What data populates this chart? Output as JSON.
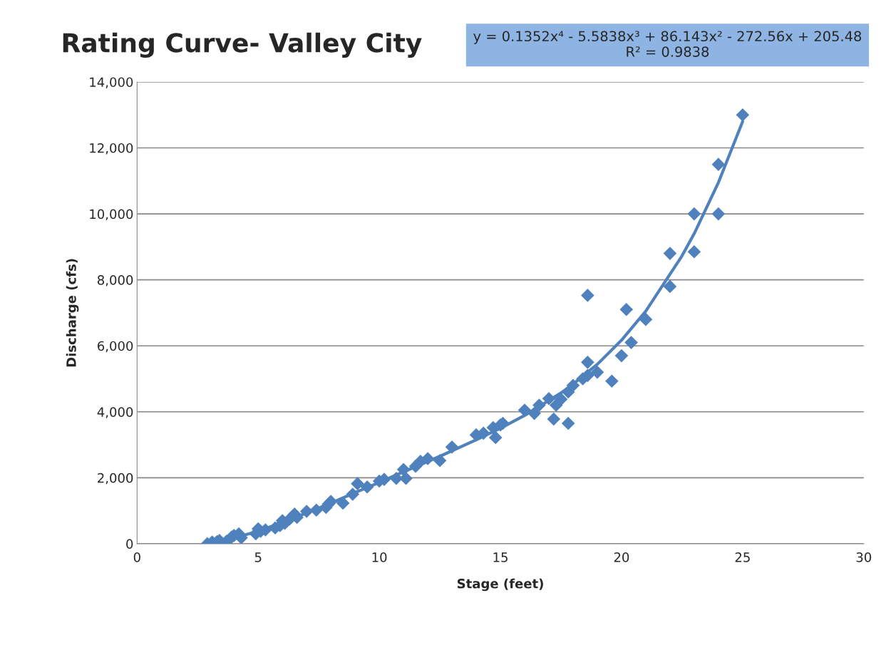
{
  "chart_data": {
    "type": "scatter",
    "title": "Rating Curve- Valley City",
    "xlabel": "Stage (feet)",
    "ylabel": "Discharge (cfs)",
    "annotations": [
      "y = 0.1352x⁴ - 5.5838x³ + 86.143x² - 272.56x + 205.48",
      "R² = 0.9838"
    ],
    "xlim": [
      0,
      30
    ],
    "xticks": [
      0,
      5,
      10,
      15,
      20,
      25,
      30
    ],
    "ylim": [
      0,
      14000
    ],
    "yticks": [
      0,
      {
        "value": 2000,
        "label": "2,000"
      },
      {
        "value": 4000,
        "label": "4,000"
      },
      {
        "value": 6000,
        "label": "6,000"
      },
      {
        "value": 8000,
        "label": "8,000"
      },
      {
        "value": 10000,
        "label": "10,000"
      },
      {
        "value": 12000,
        "label": "12,000"
      },
      {
        "value": 14000,
        "label": "14,000"
      }
    ],
    "grid": "y",
    "legend": false,
    "marker": "diamond",
    "series": [
      {
        "color": "#4f81bd",
        "x": [
          2.9,
          3.1,
          3.3,
          3.4,
          3.7,
          3.9,
          4.0,
          4.2,
          4.3,
          4.9,
          5.0,
          5.1,
          5.3,
          5.7,
          5.9,
          6.0,
          6.1,
          6.3,
          6.5,
          6.6,
          7.0,
          7.4,
          7.8,
          7.9,
          8.0,
          8.5,
          8.9,
          9.1,
          9.5,
          10.0,
          10.2,
          10.7,
          11.0,
          11.1,
          11.5,
          11.7,
          12.0,
          12.5,
          13.0,
          14.0,
          14.3,
          14.7,
          14.8,
          15.0,
          15.1,
          16.0,
          16.4,
          16.6,
          17.0,
          17.2,
          17.3,
          17.5,
          17.8,
          17.8,
          18.0,
          18.4,
          18.6,
          18.6,
          18.6,
          19.0,
          19.6,
          20.0,
          20.2,
          20.4,
          21.0,
          22.0,
          22.0,
          23.0,
          23.0,
          24.0,
          24.0,
          25.0
        ],
        "values": [
          0,
          50,
          60,
          100,
          80,
          200,
          250,
          300,
          180,
          300,
          450,
          380,
          420,
          480,
          550,
          700,
          620,
          750,
          900,
          800,
          980,
          1020,
          1100,
          1200,
          1280,
          1230,
          1500,
          1820,
          1720,
          1900,
          1950,
          1980,
          2250,
          1980,
          2350,
          2500,
          2580,
          2520,
          2930,
          3300,
          3350,
          3520,
          3220,
          3600,
          3650,
          4050,
          3950,
          4200,
          4400,
          3780,
          4200,
          4380,
          3650,
          4600,
          4800,
          5000,
          5100,
          5500,
          7530,
          5200,
          4930,
          5700,
          7100,
          6100,
          6800,
          7800,
          8800,
          10000,
          8850,
          11500,
          10000,
          13000
        ]
      },
      {
        "type": "line",
        "color": "#4f81bd",
        "marker": "none",
        "line_style": "solid",
        "x": [
          2.9,
          3,
          4,
          5,
          6,
          7.5,
          8,
          9,
          10,
          11,
          12.5,
          14,
          15,
          16,
          17.5,
          18,
          19,
          20,
          21,
          22.5,
          23,
          24,
          25
        ],
        "values": [
          20,
          20,
          170,
          380,
          640,
          1080,
          1230,
          1550,
          1860,
          2180,
          2650,
          3150,
          3500,
          3890,
          4570,
          4840,
          5440,
          6170,
          7050,
          8730,
          9400,
          10950,
          12800
        ]
      }
    ]
  }
}
